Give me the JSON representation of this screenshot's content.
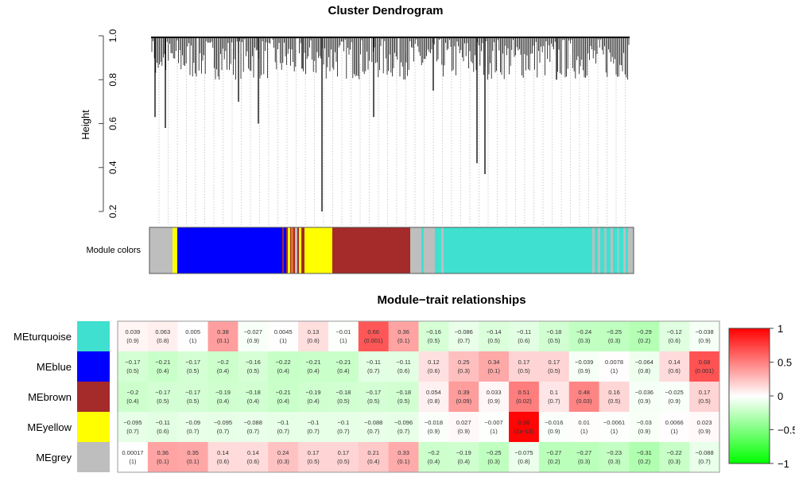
{
  "chart_data": [
    {
      "type": "dendrogram",
      "title": "Cluster Dendrogram",
      "ylabel": "Height",
      "ylim": [
        0.2,
        1.0
      ],
      "yticks": [
        "0.2",
        "0.4",
        "0.6",
        "0.8",
        "1.0"
      ],
      "color_bar_label": "Module colors",
      "module_colors": {
        "grey": "#bebebe",
        "yellow": "#ffff00",
        "blue": "#0000ff",
        "brown": "#a52a2a",
        "turquoise": "#40e0d0"
      },
      "module_color_order": [
        "grey",
        "yellow",
        "blue",
        "mixed",
        "yellow",
        "brown",
        "grey",
        "turquoise",
        "mixed",
        "grey"
      ]
    },
    {
      "type": "heatmap",
      "title": "Module−trait relationships",
      "rows": [
        "MEturquoise",
        "MEblue",
        "MEbrown",
        "MEyellow",
        "MEgrey"
      ],
      "row_colors": [
        "#40e0d0",
        "#0000ff",
        "#a52a2a",
        "#ffff00",
        "#bebebe"
      ],
      "values": [
        [
          "0.039",
          "0.063",
          "0.005",
          "0.38",
          "−0.027",
          "0.0045",
          "0.13",
          "−0.01",
          "0.66",
          "0.36",
          "−0.16",
          "−0.086",
          "−0.14",
          "−0.11",
          "−0.18",
          "−0.24",
          "−0.25",
          "−0.29",
          "−0.12",
          "−0.038"
        ],
        [
          "−0.17",
          "−0.21",
          "−0.17",
          "−0.2",
          "−0.16",
          "−0.22",
          "−0.21",
          "−0.21",
          "−0.11",
          "−0.11",
          "0.12",
          "0.25",
          "0.34",
          "0.17",
          "0.17",
          "−0.039",
          "0.0078",
          "−0.064",
          "0.14",
          "0.68"
        ],
        [
          "−0.2",
          "−0.17",
          "−0.17",
          "−0.19",
          "−0.18",
          "−0.21",
          "−0.19",
          "−0.18",
          "−0.17",
          "−0.18",
          "0.054",
          "0.39",
          "0.033",
          "0.51",
          "0.1",
          "0.48",
          "0.16",
          "−0.036",
          "−0.025",
          "0.17"
        ],
        [
          "−0.095",
          "−0.11",
          "−0.09",
          "−0.095",
          "−0.088",
          "−0.1",
          "−0.1",
          "−0.1",
          "−0.088",
          "−0.096",
          "−0.018",
          "0.027",
          "−0.007",
          "0.98",
          "−0.016",
          "0.01",
          "−0.0061",
          "−0.03",
          "0.0066",
          "0.023"
        ],
        [
          "0.00017",
          "0.36",
          "0.35",
          "0.14",
          "0.14",
          "0.24",
          "0.17",
          "0.17",
          "0.21",
          "0.33",
          "−0.2",
          "−0.19",
          "−0.25",
          "−0.075",
          "−0.27",
          "−0.27",
          "−0.23",
          "−0.31",
          "−0.22",
          "−0.088"
        ]
      ],
      "pvalues": [
        [
          "0.9",
          "0.8",
          "1",
          "0.1",
          "0.9",
          "1",
          "0.6",
          "1",
          "0.001",
          "0.1",
          "0.5",
          "0.7",
          "0.5",
          "0.6",
          "0.5",
          "0.3",
          "0.3",
          "0.2",
          "0.6",
          "0.9"
        ],
        [
          "0.5",
          "0.4",
          "0.5",
          "0.4",
          "0.5",
          "0.4",
          "0.4",
          "0.4",
          "0.7",
          "0.6",
          "0.6",
          "0.3",
          "0.1",
          "0.5",
          "0.5",
          "0.9",
          "1",
          "0.8",
          "0.6",
          "0.001"
        ],
        [
          "0.4",
          "0.5",
          "0.5",
          "0.4",
          "0.4",
          "0.4",
          "0.4",
          "0.5",
          "0.5",
          "0.5",
          "0.8",
          "0.09",
          "0.9",
          "0.02",
          "0.7",
          "0.03",
          "0.5",
          "0.9",
          "0.9",
          "0.5"
        ],
        [
          "0.7",
          "0.6",
          "0.7",
          "0.7",
          "0.7",
          "0.7",
          "0.7",
          "0.7",
          "0.7",
          "0.7",
          "0.9",
          "0.9",
          "1",
          "1e-13",
          "0.9",
          "1",
          "1",
          "0.9",
          "1",
          "0.9"
        ],
        [
          "1",
          "0.1",
          "0.1",
          "0.6",
          "0.6",
          "0.3",
          "0.5",
          "0.5",
          "0.4",
          "0.1",
          "0.4",
          "0.4",
          "0.3",
          "0.8",
          "0.2",
          "0.3",
          "0.3",
          "0.2",
          "0.3",
          "0.7"
        ]
      ],
      "colorscale": {
        "min": -1,
        "max": 1,
        "low": "#00ff00",
        "mid": "#ffffff",
        "high": "#ff0000"
      },
      "colorbar_ticks": [
        "1",
        "0.5",
        "0",
        "−0.5",
        "−1"
      ],
      "legend": "right"
    }
  ]
}
